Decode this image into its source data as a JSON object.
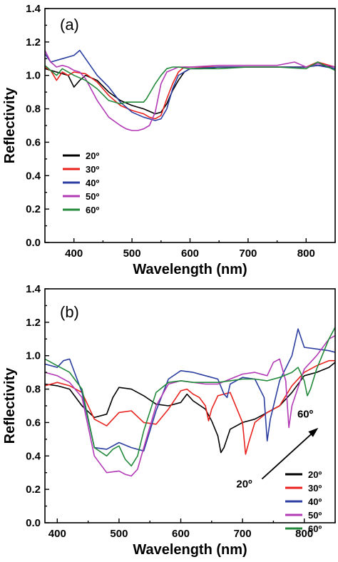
{
  "chart_data": [
    {
      "type": "line",
      "panel_label": "(a)",
      "title": "",
      "xlabel": "Wavelength (nm)",
      "ylabel": "Reflectivity",
      "xlim": [
        350,
        850
      ],
      "ylim": [
        0.0,
        1.4
      ],
      "xticks": [
        400,
        500,
        600,
        700,
        800
      ],
      "yticks": [
        0.0,
        0.2,
        0.4,
        0.6,
        0.8,
        1.0,
        1.2,
        1.4
      ],
      "ytick_labels": [
        "0.0",
        "0.2",
        "0.4",
        "0.6",
        "0.8",
        "1.0",
        "1.2",
        "1.4"
      ],
      "grid": false,
      "legend_position": "bottom-left",
      "series": [
        {
          "name": "20º",
          "color": "#000000",
          "x": [
            350,
            370,
            390,
            400,
            410,
            420,
            440,
            460,
            480,
            500,
            520,
            540,
            550,
            560,
            570,
            580,
            590,
            600,
            620,
            650,
            700,
            750,
            800,
            820,
            850
          ],
          "y": [
            1.04,
            1.02,
            1.0,
            0.93,
            0.97,
            1.0,
            0.97,
            0.9,
            0.85,
            0.82,
            0.8,
            0.77,
            0.78,
            0.83,
            0.91,
            0.97,
            1.02,
            1.04,
            1.04,
            1.05,
            1.05,
            1.05,
            1.05,
            1.06,
            1.05
          ]
        },
        {
          "name": "30º",
          "color": "#e8231f",
          "x": [
            350,
            360,
            370,
            380,
            390,
            400,
            420,
            440,
            460,
            480,
            500,
            520,
            530,
            540,
            550,
            560,
            570,
            580,
            590,
            600,
            650,
            700,
            750,
            800,
            820,
            850
          ],
          "y": [
            1.05,
            1.03,
            0.97,
            1.02,
            1.0,
            1.02,
            1.01,
            0.96,
            0.88,
            0.82,
            0.79,
            0.77,
            0.75,
            0.74,
            0.76,
            0.86,
            0.95,
            1.02,
            1.05,
            1.05,
            1.05,
            1.05,
            1.05,
            1.05,
            1.08,
            1.05
          ]
        },
        {
          "name": "40º",
          "color": "#2b3ea0",
          "x": [
            350,
            360,
            380,
            400,
            410,
            420,
            440,
            460,
            480,
            500,
            520,
            530,
            540,
            550,
            560,
            570,
            580,
            600,
            650,
            700,
            750,
            800,
            820,
            850
          ],
          "y": [
            1.13,
            1.08,
            1.1,
            1.12,
            1.15,
            1.1,
            1.0,
            0.93,
            0.84,
            0.78,
            0.75,
            0.74,
            0.73,
            0.74,
            0.8,
            0.92,
            1.0,
            1.04,
            1.05,
            1.05,
            1.05,
            1.05,
            1.06,
            1.04
          ]
        },
        {
          "name": "50º",
          "color": "#b23ab5",
          "x": [
            350,
            360,
            370,
            380,
            390,
            400,
            410,
            420,
            440,
            460,
            480,
            490,
            500,
            510,
            520,
            530,
            540,
            550,
            560,
            580,
            600,
            650,
            700,
            750,
            780,
            800,
            820,
            850
          ],
          "y": [
            1.15,
            1.08,
            1.05,
            1.06,
            1.05,
            1.03,
            1.02,
            0.98,
            0.85,
            0.75,
            0.7,
            0.68,
            0.67,
            0.67,
            0.68,
            0.7,
            0.78,
            0.95,
            1.02,
            1.05,
            1.05,
            1.06,
            1.06,
            1.06,
            1.08,
            1.05,
            1.07,
            1.05
          ]
        },
        {
          "name": "60º",
          "color": "#23893b",
          "x": [
            350,
            360,
            370,
            380,
            400,
            420,
            440,
            460,
            480,
            490,
            500,
            510,
            520,
            525,
            530,
            540,
            550,
            560,
            570,
            580,
            600,
            650,
            700,
            750,
            800,
            820,
            850
          ],
          "y": [
            1.06,
            1.03,
            1.0,
            1.04,
            1.0,
            0.97,
            0.92,
            0.85,
            0.83,
            0.84,
            0.84,
            0.84,
            0.84,
            0.86,
            0.89,
            0.95,
            1.0,
            1.04,
            1.05,
            1.05,
            1.04,
            1.04,
            1.05,
            1.05,
            1.04,
            1.08,
            1.03
          ]
        }
      ]
    },
    {
      "type": "line",
      "panel_label": "(b)",
      "title": "",
      "xlabel": "Wavelength (nm)",
      "ylabel": "Reflectivity",
      "xlim": [
        380,
        850
      ],
      "ylim": [
        0.0,
        1.4
      ],
      "xticks": [
        400,
        500,
        600,
        700,
        800
      ],
      "yticks": [
        0.0,
        0.2,
        0.4,
        0.6,
        0.8,
        1.0,
        1.2,
        1.4
      ],
      "ytick_labels": [
        "0.0",
        "0.2",
        "0.4",
        "0.6",
        "0.8",
        "1.0",
        "1.2",
        "1.4"
      ],
      "grid": false,
      "legend_position": "bottom-right",
      "annotations": [
        {
          "text": "20º",
          "x": 720,
          "y": 0.245
        },
        {
          "text": "60º",
          "x": 798,
          "y": 0.63
        }
      ],
      "arrow": {
        "from": [
          720,
          0.245
        ],
        "to": [
          820,
          0.56
        ]
      },
      "series": [
        {
          "name": "20º",
          "color": "#000000",
          "x": [
            380,
            400,
            420,
            440,
            460,
            480,
            490,
            500,
            520,
            540,
            560,
            580,
            600,
            610,
            620,
            640,
            650,
            660,
            665,
            670,
            680,
            700,
            720,
            740,
            760,
            780,
            800,
            820,
            840,
            850
          ],
          "y": [
            0.83,
            0.82,
            0.8,
            0.7,
            0.63,
            0.65,
            0.75,
            0.81,
            0.8,
            0.76,
            0.71,
            0.7,
            0.72,
            0.77,
            0.73,
            0.68,
            0.61,
            0.52,
            0.42,
            0.45,
            0.56,
            0.6,
            0.62,
            0.66,
            0.7,
            0.78,
            0.88,
            0.9,
            0.93,
            0.96
          ]
        },
        {
          "name": "30º",
          "color": "#e8231f",
          "x": [
            380,
            400,
            420,
            440,
            460,
            480,
            500,
            520,
            540,
            560,
            580,
            600,
            610,
            620,
            630,
            640,
            645,
            650,
            660,
            680,
            700,
            705,
            710,
            720,
            740,
            760,
            780,
            800,
            820,
            840,
            850
          ],
          "y": [
            0.82,
            0.84,
            0.82,
            0.78,
            0.62,
            0.58,
            0.66,
            0.67,
            0.6,
            0.59,
            0.68,
            0.79,
            0.8,
            0.77,
            0.75,
            0.7,
            0.61,
            0.68,
            0.76,
            0.78,
            0.6,
            0.41,
            0.48,
            0.6,
            0.66,
            0.7,
            0.82,
            0.9,
            0.94,
            0.97,
            0.97
          ]
        },
        {
          "name": "40º",
          "color": "#2b3ea0",
          "x": [
            380,
            400,
            410,
            420,
            440,
            460,
            480,
            500,
            520,
            540,
            560,
            580,
            600,
            620,
            640,
            660,
            670,
            675,
            680,
            700,
            720,
            735,
            740,
            745,
            760,
            780,
            790,
            800,
            820,
            840,
            850
          ],
          "y": [
            0.95,
            0.93,
            0.97,
            0.98,
            0.78,
            0.45,
            0.44,
            0.48,
            0.45,
            0.43,
            0.67,
            0.86,
            0.91,
            0.9,
            0.88,
            0.86,
            0.77,
            0.75,
            0.83,
            0.87,
            0.86,
            0.75,
            0.49,
            0.62,
            0.85,
            1.0,
            1.16,
            1.05,
            1.04,
            1.03,
            1.02
          ]
        },
        {
          "name": "50º",
          "color": "#b23ab5",
          "x": [
            380,
            400,
            420,
            440,
            460,
            480,
            500,
            510,
            520,
            530,
            540,
            560,
            580,
            600,
            620,
            640,
            660,
            680,
            700,
            720,
            740,
            750,
            760,
            770,
            775,
            780,
            800,
            820,
            840,
            850
          ],
          "y": [
            0.9,
            0.88,
            0.84,
            0.75,
            0.4,
            0.3,
            0.31,
            0.29,
            0.28,
            0.32,
            0.45,
            0.7,
            0.83,
            0.85,
            0.84,
            0.83,
            0.83,
            0.86,
            0.89,
            0.9,
            0.88,
            0.96,
            0.98,
            0.85,
            0.57,
            0.7,
            0.92,
            1.0,
            1.1,
            1.12
          ]
        },
        {
          "name": "60º",
          "color": "#23893b",
          "x": [
            380,
            400,
            420,
            440,
            460,
            480,
            490,
            500,
            510,
            520,
            530,
            540,
            560,
            580,
            600,
            620,
            640,
            660,
            680,
            700,
            720,
            740,
            760,
            780,
            790,
            800,
            805,
            810,
            820,
            840,
            850
          ],
          "y": [
            0.98,
            0.94,
            0.9,
            0.8,
            0.45,
            0.4,
            0.44,
            0.46,
            0.38,
            0.34,
            0.4,
            0.55,
            0.78,
            0.84,
            0.85,
            0.84,
            0.84,
            0.84,
            0.85,
            0.86,
            0.86,
            0.85,
            0.87,
            0.9,
            0.93,
            0.85,
            0.76,
            0.8,
            0.92,
            1.1,
            1.17
          ]
        }
      ]
    }
  ]
}
